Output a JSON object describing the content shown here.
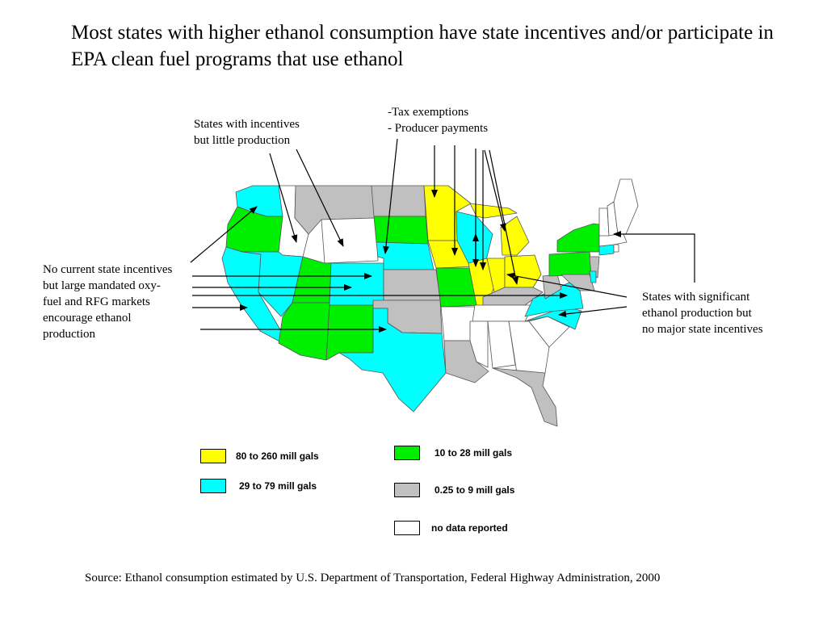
{
  "title": "Most states with higher ethanol consumption have state incentives and/or participate in EPA clean fuel programs that use ethanol",
  "annotations": {
    "incentives_little_production": "States with incentives\nbut little production",
    "tax_payments": "-Tax exemptions\n- Producer payments",
    "no_incentives_mandated": "No current state incentives\nbut large mandated oxy-\nfuel and RFG markets\nencourage ethanol\nproduction",
    "significant_production": "States with significant\nethanol production but\nno major state incentives"
  },
  "colors": {
    "yellow": "#ffff00",
    "cyan": "#00ffff",
    "green": "#00ee00",
    "gray": "#c0c0c0",
    "white": "#ffffff"
  },
  "legend": [
    {
      "label": "80 to 260 mill gals",
      "color": "#ffff00"
    },
    {
      "label": "29 to 79 mill gals",
      "color": "#00ffff"
    },
    {
      "label": "10 to 28 mill gals",
      "color": "#00ee00"
    },
    {
      "label": "0.25 to 9 mill gals",
      "color": "#c0c0c0"
    },
    {
      "label": "no data reported",
      "color": "#ffffff"
    }
  ],
  "source": "Source:  Ethanol consumption estimated by U.S. Department of Transportation, Federal Highway Administration, 2000"
}
